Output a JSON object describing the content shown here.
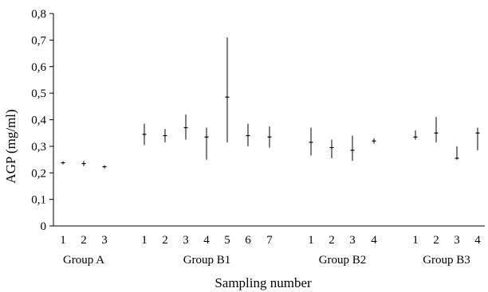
{
  "chart_data": {
    "type": "scatter",
    "title": "",
    "xlabel": "Sampling number",
    "ylabel": "AGP (mg/ml)",
    "ylim": [
      0,
      0.8
    ],
    "y_ticks": [
      "0",
      "0,1",
      "0,2",
      "0,3",
      "0,4",
      "0,5",
      "0,6",
      "0,7",
      "0,8"
    ],
    "grid": false,
    "error_bars": true,
    "groups": [
      {
        "name": "Group A",
        "points": [
          {
            "x": "1",
            "mean": 0.238,
            "low": 0.232,
            "high": 0.244
          },
          {
            "x": "2",
            "mean": 0.235,
            "low": 0.225,
            "high": 0.245
          },
          {
            "x": "3",
            "mean": 0.223,
            "low": 0.217,
            "high": 0.229
          }
        ]
      },
      {
        "name": "Group B1",
        "points": [
          {
            "x": "1",
            "mean": 0.345,
            "low": 0.305,
            "high": 0.385
          },
          {
            "x": "2",
            "mean": 0.34,
            "low": 0.315,
            "high": 0.365
          },
          {
            "x": "3",
            "mean": 0.37,
            "low": 0.325,
            "high": 0.42
          },
          {
            "x": "4",
            "mean": 0.335,
            "low": 0.25,
            "high": 0.37
          },
          {
            "x": "5",
            "mean": 0.485,
            "low": 0.315,
            "high": 0.71
          },
          {
            "x": "6",
            "mean": 0.34,
            "low": 0.3,
            "high": 0.385
          },
          {
            "x": "7",
            "mean": 0.335,
            "low": 0.295,
            "high": 0.375
          }
        ]
      },
      {
        "name": "Group B2",
        "points": [
          {
            "x": "1",
            "mean": 0.315,
            "low": 0.265,
            "high": 0.37
          },
          {
            "x": "2",
            "mean": 0.295,
            "low": 0.255,
            "high": 0.325
          },
          {
            "x": "3",
            "mean": 0.285,
            "low": 0.245,
            "high": 0.34
          },
          {
            "x": "4",
            "mean": 0.32,
            "low": 0.31,
            "high": 0.33
          }
        ]
      },
      {
        "name": "Group B3",
        "points": [
          {
            "x": "1",
            "mean": 0.335,
            "low": 0.325,
            "high": 0.36
          },
          {
            "x": "2",
            "mean": 0.35,
            "low": 0.315,
            "high": 0.41
          },
          {
            "x": "3",
            "mean": 0.255,
            "low": 0.25,
            "high": 0.3
          },
          {
            "x": "4",
            "mean": 0.35,
            "low": 0.285,
            "high": 0.37
          }
        ]
      }
    ]
  }
}
